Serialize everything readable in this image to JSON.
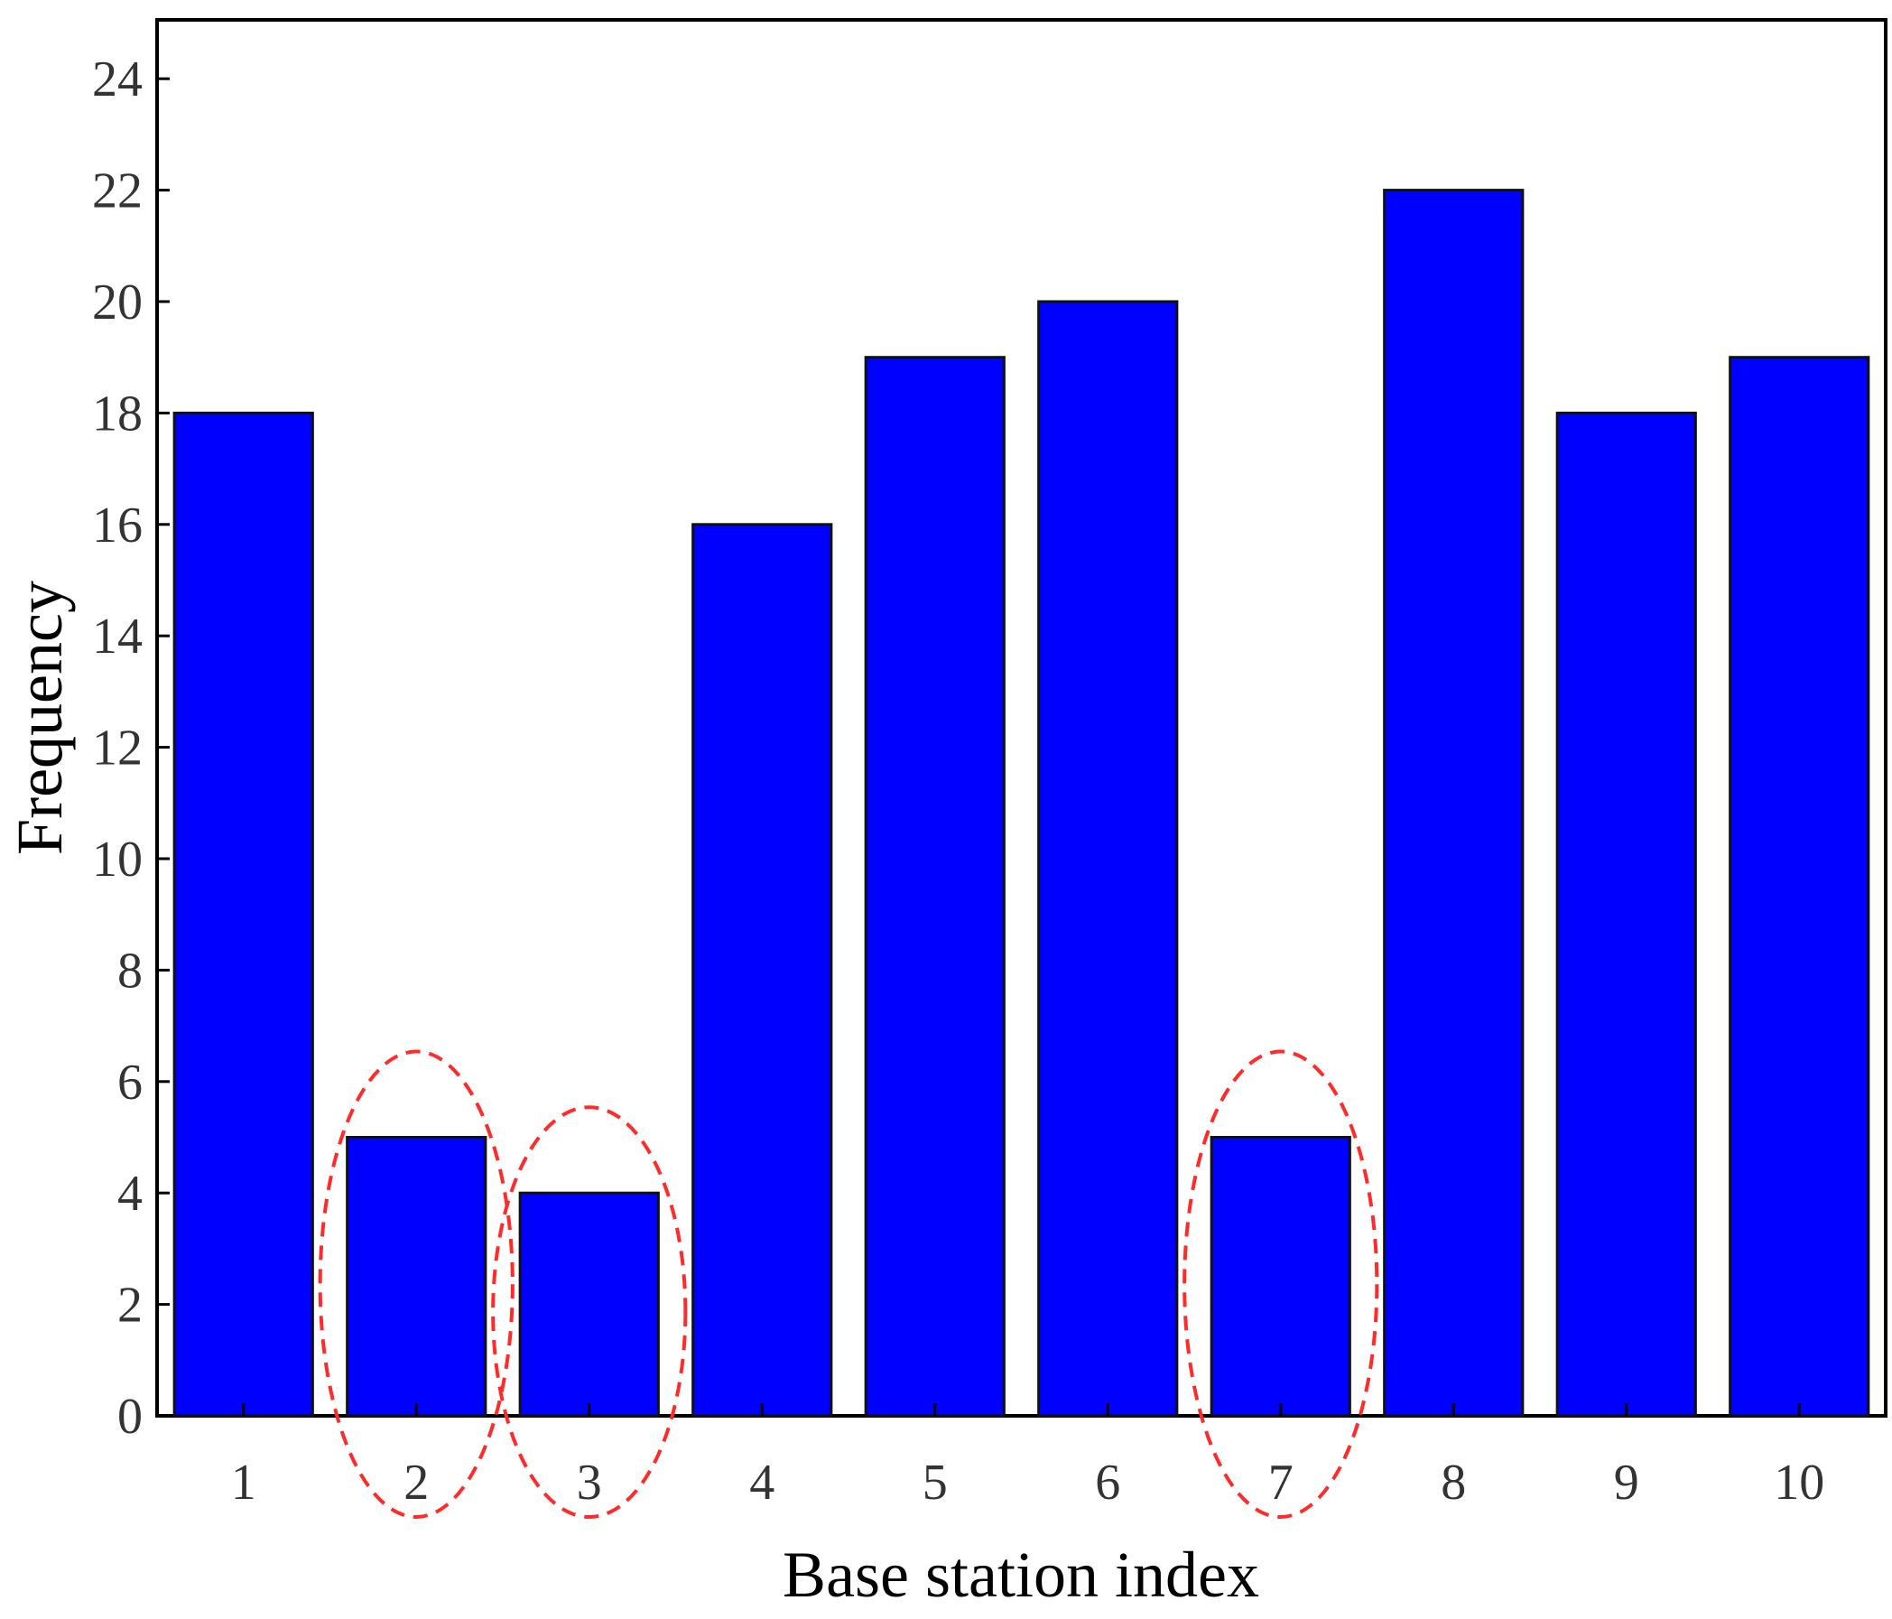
{
  "chart_data": {
    "type": "bar",
    "title": "",
    "xlabel": "Base station index",
    "ylabel": "Frequency",
    "categories": [
      "1",
      "2",
      "3",
      "4",
      "5",
      "6",
      "7",
      "8",
      "9",
      "10"
    ],
    "values": [
      18,
      5,
      4,
      16,
      19,
      20,
      5,
      22,
      18,
      19
    ],
    "ylim": [
      0,
      25
    ],
    "yticks": [
      0,
      2,
      4,
      6,
      8,
      10,
      12,
      14,
      16,
      18,
      20,
      22,
      24
    ],
    "grid": false,
    "legend": "none",
    "bar_color": "#0000ff",
    "highlighted_categories": [
      "2",
      "3",
      "7"
    ],
    "highlight_color": "#ff2a2a"
  }
}
